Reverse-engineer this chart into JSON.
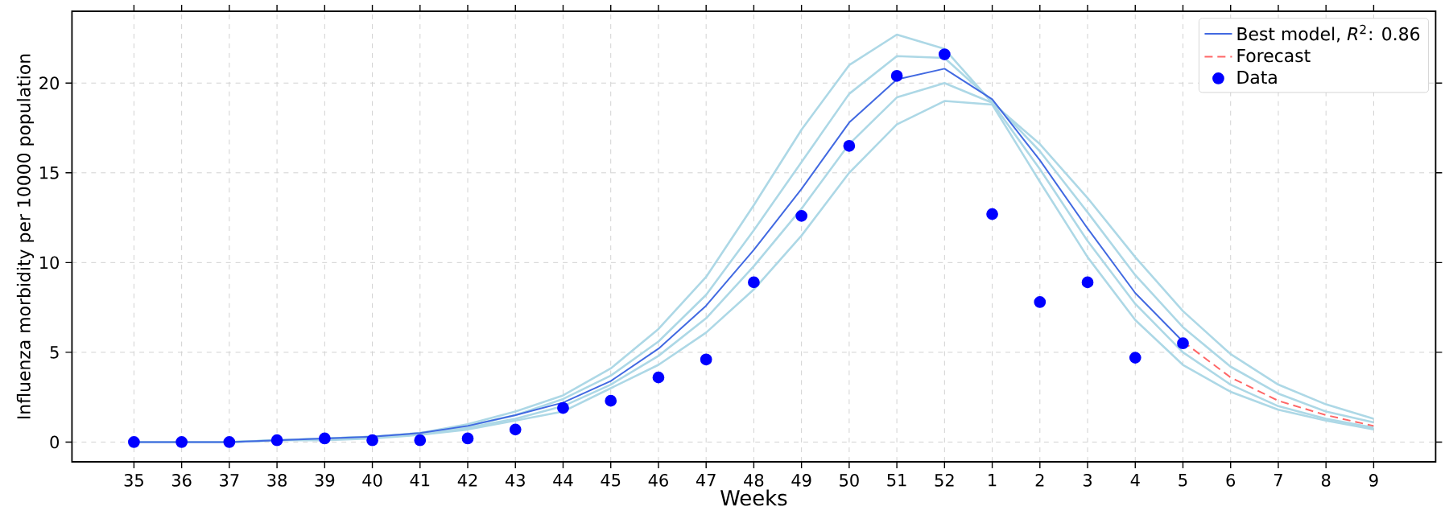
{
  "chart_data": {
    "type": "line",
    "categories": [
      "35",
      "36",
      "37",
      "38",
      "39",
      "40",
      "41",
      "42",
      "43",
      "44",
      "45",
      "46",
      "47",
      "48",
      "49",
      "50",
      "51",
      "52",
      "1",
      "2",
      "3",
      "4",
      "5",
      "6",
      "7",
      "8",
      "9"
    ],
    "xlabel": "Weeks",
    "ylabel": "Influenza morbidity per 10000 population",
    "ylim": [
      -1.1,
      24
    ],
    "yticks": [
      0,
      5,
      10,
      15,
      20
    ],
    "grid": true,
    "legend": "top right",
    "series": [
      {
        "color": "#add8e6",
        "line_style": "solid",
        "values": [
          0,
          0,
          0,
          0.1,
          0.2,
          0.3,
          0.5,
          1.0,
          1.7,
          2.6,
          4.1,
          6.3,
          9.2,
          13.2,
          17.4,
          21.0,
          22.7,
          21.9,
          18.9,
          16.6,
          13.6,
          10.3,
          7.3,
          4.9,
          3.2,
          2.1,
          1.3
        ]
      },
      {
        "color": "#add8e6",
        "line_style": "solid",
        "values": [
          0,
          0,
          0,
          0.1,
          0.2,
          0.3,
          0.5,
          0.9,
          1.5,
          2.4,
          3.7,
          5.6,
          8.2,
          11.8,
          15.6,
          19.4,
          21.5,
          21.4,
          19.0,
          16.2,
          12.8,
          9.3,
          6.4,
          4.2,
          2.7,
          1.7,
          1.1
        ]
      },
      {
        "color": "#add8e6",
        "line_style": "solid",
        "values": [
          0,
          0,
          0,
          0.1,
          0.2,
          0.3,
          0.4,
          0.8,
          1.3,
          2.0,
          3.2,
          4.8,
          6.9,
          9.8,
          13.0,
          16.6,
          19.2,
          20.0,
          18.9,
          15.2,
          11.2,
          7.7,
          5.0,
          3.2,
          2.0,
          1.3,
          0.8
        ]
      },
      {
        "color": "#add8e6",
        "line_style": "solid",
        "values": [
          0,
          0,
          0,
          0.1,
          0.1,
          0.2,
          0.4,
          0.7,
          1.2,
          1.7,
          3.0,
          4.3,
          6.1,
          8.5,
          11.5,
          15.0,
          17.7,
          19.0,
          18.8,
          14.5,
          10.3,
          6.8,
          4.3,
          2.8,
          1.8,
          1.2,
          0.7
        ]
      },
      {
        "name": "Best model, *R*$^{2}$: 0.86",
        "color": "#4169e1",
        "line_style": "solid",
        "values": [
          0,
          0,
          0,
          0.1,
          0.2,
          0.3,
          0.5,
          0.9,
          1.5,
          2.2,
          3.4,
          5.2,
          7.6,
          10.7,
          14.1,
          17.8,
          20.2,
          20.8,
          19.1,
          15.7,
          11.9,
          8.3,
          5.6,
          null,
          null,
          null,
          null
        ]
      },
      {
        "name": "Forecast",
        "color": "#ff6666",
        "line_style": "dashed",
        "values": [
          null,
          null,
          null,
          null,
          null,
          null,
          null,
          null,
          null,
          null,
          null,
          null,
          null,
          null,
          null,
          null,
          null,
          null,
          null,
          null,
          null,
          null,
          5.6,
          3.6,
          2.3,
          1.5,
          0.9
        ]
      },
      {
        "name": "Data",
        "type": "scatter",
        "marker": "circle",
        "color": "#0000ff",
        "values": [
          0,
          0,
          0,
          0.1,
          0.2,
          0.1,
          0.1,
          0.2,
          0.7,
          1.9,
          2.3,
          3.6,
          4.6,
          8.9,
          12.6,
          16.5,
          20.4,
          21.6,
          12.7,
          7.8,
          8.9,
          4.7,
          5.5,
          null,
          null,
          null,
          null
        ]
      }
    ]
  }
}
